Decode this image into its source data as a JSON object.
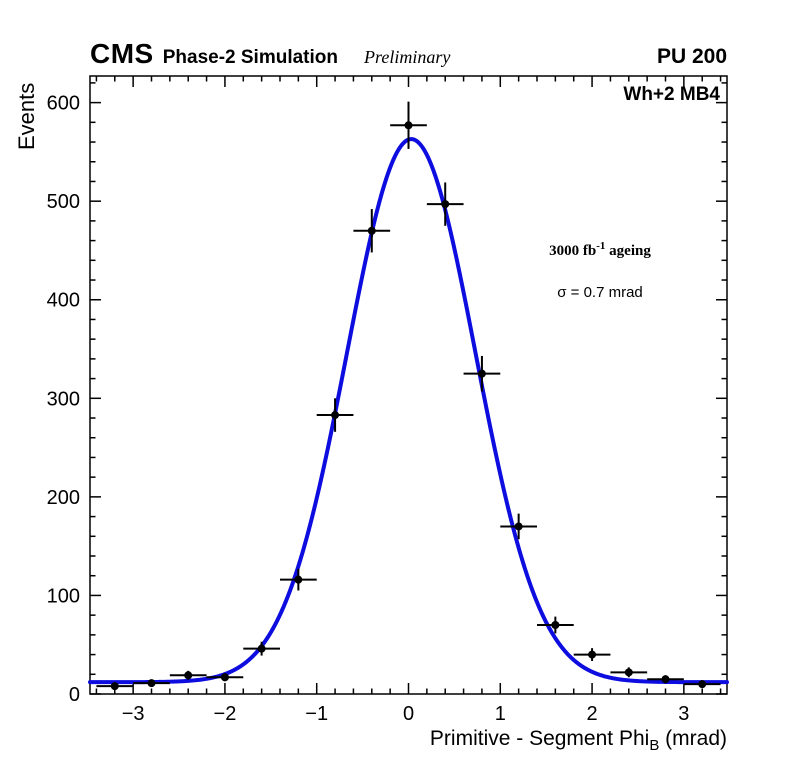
{
  "header": {
    "cms": "CMS",
    "simulation": "Phase-2 Simulation",
    "preliminary": "Preliminary",
    "pileup": "PU 200"
  },
  "plot_labels": {
    "chamber": "Wh+2 MB4",
    "lumi_prefix": "3000 fb",
    "lumi_sup": "-1",
    "lumi_suffix": " ageing",
    "sigma_text": "σ = 0.7 mrad"
  },
  "axis_titles": {
    "y": "Events",
    "x_pre": "Primitive - Segment Phi",
    "x_sub": "B",
    "x_post": " (mrad)"
  },
  "chart_data": {
    "type": "scatter",
    "title": "",
    "xlabel": "Primitive - Segment PhiB (mrad)",
    "ylabel": "Events",
    "xlim": [
      -3.47,
      3.47
    ],
    "ylim": [
      0,
      627
    ],
    "grid": false,
    "x_ticks": [
      -3,
      -2,
      -1,
      0,
      1,
      2,
      3
    ],
    "x_tick_labels": [
      "−3",
      "−2",
      "−1",
      "0",
      "1",
      "2",
      "3"
    ],
    "y_ticks": [
      0,
      100,
      200,
      300,
      400,
      500,
      600
    ],
    "y_tick_labels": [
      "0",
      "100",
      "200",
      "300",
      "400",
      "500",
      "600"
    ],
    "x_minor_step": 0.2,
    "y_minor_step": 20,
    "axis_color": "#000000",
    "marker_color": "#000000",
    "fit_color": "#0d0de0",
    "points": [
      {
        "x": -3.2,
        "y": 8,
        "ex": 0.2,
        "ey": 3
      },
      {
        "x": -2.8,
        "y": 11,
        "ex": 0.2,
        "ey": 3.5
      },
      {
        "x": -2.4,
        "y": 19,
        "ex": 0.2,
        "ey": 4.5
      },
      {
        "x": -2.0,
        "y": 17,
        "ex": 0.2,
        "ey": 4
      },
      {
        "x": -1.6,
        "y": 46,
        "ex": 0.2,
        "ey": 7
      },
      {
        "x": -1.2,
        "y": 116,
        "ex": 0.2,
        "ey": 11
      },
      {
        "x": -0.8,
        "y": 283,
        "ex": 0.2,
        "ey": 17
      },
      {
        "x": -0.4,
        "y": 470,
        "ex": 0.2,
        "ey": 22
      },
      {
        "x": 0.0,
        "y": 577,
        "ex": 0.2,
        "ey": 24
      },
      {
        "x": 0.4,
        "y": 497,
        "ex": 0.2,
        "ey": 22
      },
      {
        "x": 0.8,
        "y": 325,
        "ex": 0.2,
        "ey": 18
      },
      {
        "x": 1.2,
        "y": 170,
        "ex": 0.2,
        "ey": 13
      },
      {
        "x": 1.6,
        "y": 70,
        "ex": 0.2,
        "ey": 8.5
      },
      {
        "x": 2.0,
        "y": 40,
        "ex": 0.2,
        "ey": 6.5
      },
      {
        "x": 2.4,
        "y": 22,
        "ex": 0.2,
        "ey": 5
      },
      {
        "x": 2.8,
        "y": 15,
        "ex": 0.2,
        "ey": 4
      },
      {
        "x": 3.2,
        "y": 10,
        "ex": 0.2,
        "ey": 3
      }
    ],
    "fit": {
      "shape": "gaussian+constant",
      "amplitude": 551,
      "mean": 0.03,
      "sigma": 0.7,
      "constant": 12
    }
  }
}
